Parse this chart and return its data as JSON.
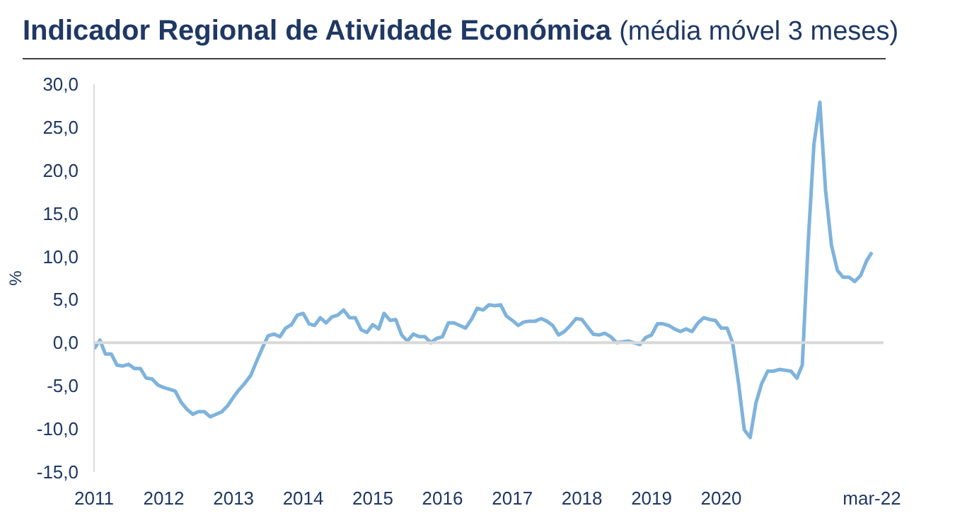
{
  "chart_data": {
    "type": "line",
    "title": "Indicador Regional de Atividade Económica",
    "subtitle": "(média móvel 3 meses)",
    "ylabel": "%",
    "x": [
      "2011-01",
      "2011-02",
      "2011-03",
      "2011-04",
      "2011-05",
      "2011-06",
      "2011-07",
      "2011-08",
      "2011-09",
      "2011-10",
      "2011-11",
      "2011-12",
      "2012-01",
      "2012-02",
      "2012-03",
      "2012-04",
      "2012-05",
      "2012-06",
      "2012-07",
      "2012-08",
      "2012-09",
      "2012-10",
      "2012-11",
      "2012-12",
      "2013-01",
      "2013-02",
      "2013-03",
      "2013-04",
      "2013-05",
      "2013-06",
      "2013-07",
      "2013-08",
      "2013-09",
      "2013-10",
      "2013-11",
      "2013-12",
      "2014-01",
      "2014-02",
      "2014-03",
      "2014-04",
      "2014-05",
      "2014-06",
      "2014-07",
      "2014-08",
      "2014-09",
      "2014-10",
      "2014-11",
      "2014-12",
      "2015-01",
      "2015-02",
      "2015-03",
      "2015-04",
      "2015-05",
      "2015-06",
      "2015-07",
      "2015-08",
      "2015-09",
      "2015-10",
      "2015-11",
      "2015-12",
      "2016-01",
      "2016-02",
      "2016-03",
      "2016-04",
      "2016-05",
      "2016-06",
      "2016-07",
      "2016-08",
      "2016-09",
      "2016-10",
      "2016-11",
      "2016-12",
      "2017-01",
      "2017-02",
      "2017-03",
      "2017-04",
      "2017-05",
      "2017-06",
      "2017-07",
      "2017-08",
      "2017-09",
      "2017-10",
      "2017-11",
      "2017-12",
      "2018-01",
      "2018-02",
      "2018-03",
      "2018-04",
      "2018-05",
      "2018-06",
      "2018-07",
      "2018-08",
      "2018-09",
      "2018-10",
      "2018-11",
      "2018-12",
      "2019-01",
      "2019-02",
      "2019-03",
      "2019-04",
      "2019-05",
      "2019-06",
      "2019-07",
      "2019-08",
      "2019-09",
      "2019-10",
      "2019-11",
      "2019-12",
      "2020-01",
      "2020-02",
      "2020-03",
      "2020-04",
      "2020-05",
      "2020-06",
      "2020-07",
      "2020-08",
      "2020-09",
      "2020-10",
      "2020-11",
      "2020-12",
      "2021-01",
      "2021-02",
      "2021-03",
      "2021-04",
      "2021-05",
      "2021-06",
      "2021-07",
      "2021-08",
      "2021-09",
      "2021-10",
      "2021-11",
      "2021-12",
      "2022-01",
      "2022-02",
      "2022-03"
    ],
    "series": [
      {
        "color": "#7fb3dc",
        "values": [
          -0.7,
          0.3,
          -1.3,
          -1.3,
          -2.6,
          -2.7,
          -2.5,
          -3.0,
          -3.0,
          -4.1,
          -4.2,
          -4.9,
          -5.2,
          -5.4,
          -5.6,
          -6.9,
          -7.7,
          -8.3,
          -8.0,
          -8.0,
          -8.6,
          -8.3,
          -8.0,
          -7.3,
          -6.3,
          -5.4,
          -4.7,
          -3.8,
          -2.2,
          -0.6,
          0.8,
          1.0,
          0.7,
          1.7,
          2.1,
          3.2,
          3.4,
          2.2,
          2.0,
          2.9,
          2.3,
          3.0,
          3.2,
          3.8,
          2.9,
          2.9,
          1.5,
          1.2,
          2.1,
          1.6,
          3.4,
          2.6,
          2.7,
          0.9,
          0.2,
          1.0,
          0.7,
          0.7,
          0.0,
          0.5,
          0.7,
          2.3,
          2.3,
          2.0,
          1.7,
          2.7,
          4.0,
          3.8,
          4.4,
          4.3,
          4.4,
          3.1,
          2.6,
          2.0,
          2.4,
          2.5,
          2.5,
          2.8,
          2.5,
          2.0,
          0.9,
          1.3,
          2.0,
          2.8,
          2.7,
          1.8,
          1.0,
          0.9,
          1.1,
          0.7,
          0.0,
          0.1,
          0.2,
          0.0,
          -0.2,
          0.6,
          0.9,
          2.2,
          2.2,
          2.0,
          1.6,
          1.3,
          1.6,
          1.3,
          2.3,
          2.9,
          2.7,
          2.6,
          1.7,
          1.7,
          0.0,
          -4.7,
          -10.1,
          -11.0,
          -7.0,
          -4.7,
          -3.3,
          -3.3,
          -3.1,
          -3.2,
          -3.3,
          -4.1,
          -2.6,
          11.6,
          23.0,
          27.9,
          17.7,
          11.3,
          8.4,
          7.6,
          7.6,
          7.1,
          7.8,
          9.5,
          10.5
        ]
      }
    ],
    "xlim": [
      "2011-01",
      "2022-05"
    ],
    "xticks": [
      {
        "value": "2011-01",
        "label": "2011"
      },
      {
        "value": "2012-01",
        "label": "2012"
      },
      {
        "value": "2013-01",
        "label": "2013"
      },
      {
        "value": "2014-01",
        "label": "2014"
      },
      {
        "value": "2015-01",
        "label": "2015"
      },
      {
        "value": "2016-01",
        "label": "2016"
      },
      {
        "value": "2017-01",
        "label": "2017"
      },
      {
        "value": "2018-01",
        "label": "2018"
      },
      {
        "value": "2019-01",
        "label": "2019"
      },
      {
        "value": "2020-01",
        "label": "2020"
      },
      {
        "value": "2022-03",
        "label": "mar-22"
      }
    ],
    "ylim": [
      -15,
      30
    ],
    "yticks": [
      {
        "value": -15,
        "label": "-15,0"
      },
      {
        "value": -10,
        "label": "-10,0"
      },
      {
        "value": -5,
        "label": "-5,0"
      },
      {
        "value": 0,
        "label": "0,0"
      },
      {
        "value": 5,
        "label": "5,0"
      },
      {
        "value": 10,
        "label": "10,0"
      },
      {
        "value": 15,
        "label": "15,0"
      },
      {
        "value": 20,
        "label": "20,0"
      },
      {
        "value": 25,
        "label": "25,0"
      },
      {
        "value": 30,
        "label": "30,0"
      }
    ],
    "ref_lines": [
      {
        "axis": "y",
        "value": 0,
        "color": "#d9d9d9"
      }
    ],
    "grid": false,
    "marker": "none",
    "line_style": "solid"
  }
}
